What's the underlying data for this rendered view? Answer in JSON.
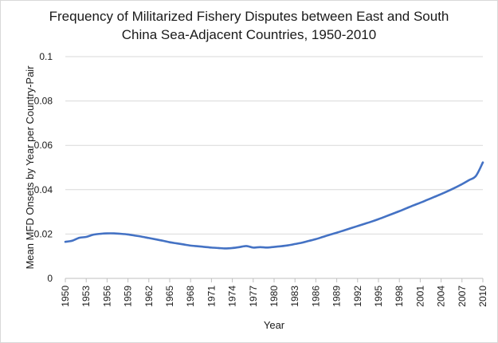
{
  "chart_data": {
    "type": "line",
    "title_line1": "Frequency of Militarized Fishery Disputes between East and South",
    "title_line2": "China Sea-Adjacent Countries, 1950-2010",
    "xlabel": "Year",
    "ylabel": "Mean MFD Onsets by Year per Country-Pair",
    "ylim": [
      0,
      0.1
    ],
    "xlim": [
      1950,
      2010
    ],
    "yticks": [
      0,
      0.02,
      0.04,
      0.06,
      0.08,
      0.1
    ],
    "ytick_labels": [
      "0",
      "0.02",
      "0.04",
      "0.06",
      "0.08",
      "0.1"
    ],
    "xticks": [
      1950,
      1953,
      1956,
      1959,
      1962,
      1965,
      1968,
      1971,
      1974,
      1977,
      1980,
      1983,
      1986,
      1989,
      1992,
      1995,
      1998,
      2001,
      2004,
      2007,
      2010
    ],
    "xtick_labels": [
      "1950",
      "1953",
      "1956",
      "1959",
      "1962",
      "1965",
      "1968",
      "1971",
      "1974",
      "1977",
      "1980",
      "1983",
      "1986",
      "1989",
      "1992",
      "1995",
      "1998",
      "2001",
      "2004",
      "2007",
      "2010"
    ],
    "grid": true,
    "series": [
      {
        "name": "Mean MFD Onsets",
        "color": "#4472c4",
        "x": [
          1950,
          1951,
          1952,
          1953,
          1954,
          1955,
          1956,
          1957,
          1958,
          1959,
          1960,
          1961,
          1962,
          1963,
          1964,
          1965,
          1966,
          1967,
          1968,
          1969,
          1970,
          1971,
          1972,
          1973,
          1974,
          1975,
          1976,
          1977,
          1978,
          1979,
          1980,
          1981,
          1982,
          1983,
          1984,
          1985,
          1986,
          1987,
          1988,
          1989,
          1990,
          1991,
          1992,
          1993,
          1994,
          1995,
          1996,
          1997,
          1998,
          1999,
          2000,
          2001,
          2002,
          2003,
          2004,
          2005,
          2006,
          2007,
          2008,
          2009,
          2010
        ],
        "values": [
          0.0165,
          0.017,
          0.0183,
          0.0187,
          0.0197,
          0.0201,
          0.0203,
          0.0203,
          0.0201,
          0.0198,
          0.0193,
          0.0188,
          0.0182,
          0.0176,
          0.017,
          0.0163,
          0.0158,
          0.0153,
          0.0148,
          0.0145,
          0.0142,
          0.0139,
          0.0137,
          0.0135,
          0.0137,
          0.0141,
          0.0146,
          0.0139,
          0.0141,
          0.0139,
          0.0142,
          0.0145,
          0.0149,
          0.0155,
          0.0161,
          0.0169,
          0.0177,
          0.0187,
          0.0197,
          0.0206,
          0.0216,
          0.0226,
          0.0236,
          0.0246,
          0.0256,
          0.0267,
          0.0279,
          0.0291,
          0.0303,
          0.0316,
          0.0329,
          0.0341,
          0.0354,
          0.0367,
          0.038,
          0.0394,
          0.0409,
          0.0425,
          0.0443,
          0.0462,
          0.0523
        ]
      }
    ]
  }
}
